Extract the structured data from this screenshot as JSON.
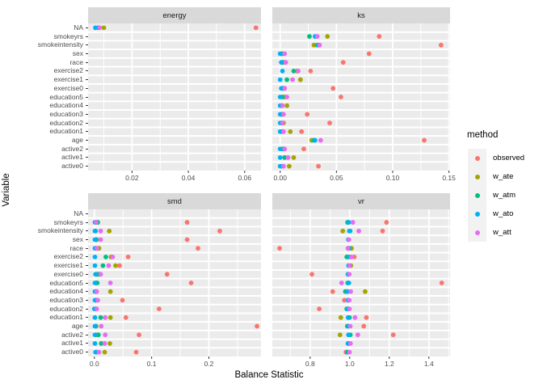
{
  "chart_data": {
    "type": "scatter",
    "title": "",
    "xlabel": "Balance Statistic",
    "ylabel": "Variable",
    "legend_position": "right",
    "grid": true,
    "categories": [
      "NA",
      "smokeyrs",
      "smokeintensity",
      "sex",
      "race",
      "exercise2",
      "exercise1",
      "exercise0",
      "education5",
      "education4",
      "education3",
      "education2",
      "education1",
      "age",
      "active2",
      "active1",
      "active0"
    ],
    "methods": [
      "observed",
      "w_ate",
      "w_atm",
      "w_ato",
      "w_att"
    ],
    "colors": {
      "observed": "#F8766D",
      "w_ate": "#A3A500",
      "w_atm": "#00BF7D",
      "w_ato": "#00B0F6",
      "w_att": "#E76BF3"
    },
    "theme": {
      "panel_bg": "#EBEBEB",
      "strip_bg": "#D9D9D9",
      "grid_color": "#FFFFFF",
      "tick_label_color": "#4D4D4D",
      "tick_mark_color": "#333333",
      "legend_key_bg": "#F2F2F2"
    },
    "legend": {
      "title": "method",
      "entries": [
        {
          "label": "observed",
          "method": "observed"
        },
        {
          "label": "w_ate",
          "method": "w_ate"
        },
        {
          "label": "w_atm",
          "method": "w_atm"
        },
        {
          "label": "w_ato",
          "method": "w_ato"
        },
        {
          "label": "w_att",
          "method": "w_att"
        }
      ]
    },
    "facets": [
      {
        "label": "energy",
        "xlim": [
          0.0044,
          0.0658
        ],
        "major_ticks": [
          0.02,
          0.04,
          0.06
        ],
        "tick_labels": [
          "0.02",
          "0.04",
          "0.06"
        ],
        "minor_ticks": [
          0.01,
          0.03,
          0.05
        ],
        "rows": [
          {
            "variable": "NA",
            "observed": 0.064,
            "w_ate": 0.01,
            "w_atm": 0.008,
            "w_ato": 0.007,
            "w_att": 0.0085
          }
        ]
      },
      {
        "label": "ks",
        "xlim": [
          -0.007,
          0.151
        ],
        "major_ticks": [
          0.0,
          0.05,
          0.1,
          0.15
        ],
        "tick_labels": [
          "0.00",
          "0.05",
          "0.10",
          "0.15"
        ],
        "minor_ticks": [
          0.025,
          0.075,
          0.125
        ],
        "rows": [
          {
            "variable": "smokeyrs",
            "observed": 0.088,
            "w_ate": 0.042,
            "w_atm": 0.026,
            "w_ato": 0.031,
            "w_att": 0.033
          },
          {
            "variable": "smokeintensity",
            "observed": 0.143,
            "w_ate": 0.03,
            "w_atm": 0.033,
            "w_ato": 0.034,
            "w_att": 0.035
          },
          {
            "variable": "sex",
            "observed": 0.079,
            "w_ate": 0.002,
            "w_atm": 0.001,
            "w_ato": 0.0,
            "w_att": 0.004
          },
          {
            "variable": "race",
            "observed": 0.056,
            "w_ate": 0.003,
            "w_atm": 0.002,
            "w_ato": 0.001,
            "w_att": 0.005
          },
          {
            "variable": "exercise2",
            "observed": 0.027,
            "w_ate": 0.015,
            "w_atm": 0.012,
            "w_ato": 0.002,
            "w_att": 0.016
          },
          {
            "variable": "exercise1",
            "observed": 0.018,
            "w_ate": 0.018,
            "w_atm": 0.006,
            "w_ato": 0.0,
            "w_att": 0.011
          },
          {
            "variable": "exercise0",
            "observed": 0.047,
            "w_ate": 0.003,
            "w_atm": 0.002,
            "w_ato": 0.001,
            "w_att": 0.004
          },
          {
            "variable": "education5",
            "observed": 0.054,
            "w_ate": 0.004,
            "w_atm": 0.002,
            "w_ato": 0.0,
            "w_att": 0.006
          },
          {
            "variable": "education4",
            "w_ate": 0.006,
            "w_atm": 0.001,
            "w_ato": 0.0,
            "w_att": 0.002
          },
          {
            "variable": "education3",
            "observed": 0.024,
            "w_ate": 0.002,
            "w_atm": 0.001,
            "w_ato": 0.0,
            "w_att": 0.003
          },
          {
            "variable": "education2",
            "observed": 0.044,
            "w_ate": 0.003,
            "w_atm": 0.001,
            "w_ato": 0.0,
            "w_att": 0.002
          },
          {
            "variable": "education1",
            "observed": 0.019,
            "w_ate": 0.009,
            "w_atm": 0.001,
            "w_ato": 0.0,
            "w_att": 0.003
          },
          {
            "variable": "age",
            "observed": 0.128,
            "w_ate": 0.028,
            "w_atm": 0.03,
            "w_ato": 0.031,
            "w_att": 0.036
          },
          {
            "variable": "active2",
            "observed": 0.021,
            "w_ate": 0.003,
            "w_atm": 0.002,
            "w_ato": 0.0,
            "w_att": 0.004
          },
          {
            "variable": "active1",
            "w_ate": 0.012,
            "w_atm": 0.004,
            "w_ato": 0.0,
            "w_att": 0.007
          },
          {
            "variable": "active0",
            "observed": 0.034,
            "w_ate": 0.008,
            "w_atm": 0.001,
            "w_ato": 0.0,
            "w_att": 0.003
          }
        ]
      },
      {
        "label": "smd",
        "xlim": [
          -0.011,
          0.291
        ],
        "major_ticks": [
          0.0,
          0.1,
          0.2
        ],
        "tick_labels": [
          "0.0",
          "0.1",
          "0.2"
        ],
        "minor_ticks": [
          0.05,
          0.15,
          0.25
        ],
        "rows": [
          {
            "variable": "smokeyrs",
            "observed": 0.162,
            "w_ate": 0.004,
            "w_atm": 0.006,
            "w_ato": 0.001,
            "w_att": 0.003
          },
          {
            "variable": "smokeintensity",
            "observed": 0.219,
            "w_ate": 0.026,
            "w_atm": 0.002,
            "w_ato": 0.001,
            "w_att": 0.011
          },
          {
            "variable": "sex",
            "observed": 0.162,
            "w_ate": 0.004,
            "w_atm": 0.003,
            "w_ato": 0.001,
            "w_att": 0.011
          },
          {
            "variable": "race",
            "observed": 0.181,
            "w_ate": 0.008,
            "w_atm": 0.002,
            "w_ato": 0.001,
            "w_att": 0.004
          },
          {
            "variable": "exercise2",
            "observed": 0.059,
            "w_ate": 0.029,
            "w_atm": 0.02,
            "w_ato": 0.001,
            "w_att": 0.032
          },
          {
            "variable": "exercise1",
            "observed": 0.044,
            "w_ate": 0.037,
            "w_atm": 0.015,
            "w_ato": 0.001,
            "w_att": 0.025
          },
          {
            "variable": "exercise0",
            "observed": 0.127,
            "w_ate": 0.004,
            "w_atm": 0.007,
            "w_ato": 0.002,
            "w_att": 0.011
          },
          {
            "variable": "education5",
            "observed": 0.169,
            "w_ate": 0.003,
            "w_atm": 0.005,
            "w_ato": 0.001,
            "w_att": 0.028
          },
          {
            "variable": "education4",
            "w_ate": 0.028,
            "w_atm": 0.002,
            "w_ato": 0.001,
            "w_att": 0.004
          },
          {
            "variable": "education3",
            "observed": 0.049,
            "w_ate": 0.003,
            "w_atm": 0.002,
            "w_ato": 0.001,
            "w_att": 0.006
          },
          {
            "variable": "education2",
            "observed": 0.113,
            "w_ate": 0.002,
            "w_atm": 0.001,
            "w_ato": 0.0,
            "w_att": 0.004
          },
          {
            "variable": "education1",
            "observed": 0.055,
            "w_ate": 0.028,
            "w_atm": 0.011,
            "w_ato": 0.001,
            "w_att": 0.019
          },
          {
            "variable": "age",
            "observed": 0.284,
            "w_ate": 0.003,
            "w_atm": 0.002,
            "w_ato": 0.001,
            "w_att": 0.012
          },
          {
            "variable": "active2",
            "observed": 0.078,
            "w_ate": 0.005,
            "w_atm": 0.007,
            "w_ato": 0.001,
            "w_att": 0.019
          },
          {
            "variable": "active1",
            "w_ate": 0.027,
            "w_atm": 0.012,
            "w_ato": 0.001,
            "w_att": 0.018
          },
          {
            "variable": "active0",
            "observed": 0.073,
            "w_ate": 0.018,
            "w_atm": 0.003,
            "w_ato": 0.002,
            "w_att": 0.008
          }
        ]
      },
      {
        "label": "vr",
        "xlim": [
          0.609,
          1.507
        ],
        "major_ticks": [
          0.8,
          1.0,
          1.2,
          1.4
        ],
        "tick_labels": [
          "0.8",
          "1.0",
          "1.2",
          "1.4"
        ],
        "minor_ticks": [
          0.7,
          0.9,
          1.1,
          1.3,
          1.5
        ],
        "rows": [
          {
            "variable": "smokeyrs",
            "observed": 1.186,
            "w_atm": 0.989,
            "w_ato": 0.996,
            "w_att": 1.016
          },
          {
            "variable": "smokeintensity",
            "observed": 1.166,
            "w_ate": 0.965,
            "w_atm": 1.002,
            "w_ato": 0.998,
            "w_att": 1.046
          },
          {
            "variable": "sex",
            "w_ato": 0.993,
            "w_att": 0.996
          },
          {
            "variable": "race",
            "observed": 0.646,
            "w_ate": 1.009,
            "w_atm": 0.997,
            "w_ato": 0.995,
            "w_att": 0.991
          },
          {
            "variable": "exercise2",
            "observed": 1.023,
            "w_ate": 0.993,
            "w_atm": 0.985,
            "w_ato": 1.0,
            "w_att": 1.008
          },
          {
            "variable": "exercise1",
            "w_ate": 1.006,
            "w_atm": 0.996,
            "w_ato": 0.994,
            "w_att": 0.999
          },
          {
            "variable": "exercise0",
            "observed": 0.809,
            "w_atm": 0.993,
            "w_ato": 0.991,
            "w_att": 0.998
          },
          {
            "variable": "education5",
            "observed": 1.465,
            "w_atm": 0.99,
            "w_ato": 0.996,
            "w_att": 0.959
          },
          {
            "variable": "education4",
            "observed": 0.914,
            "w_ate": 1.078,
            "w_atm": 0.978,
            "w_ato": 0.99,
            "w_att": 1.005
          },
          {
            "variable": "education3",
            "observed": 0.973,
            "w_atm": 0.995,
            "w_ato": 0.992,
            "w_att": 0.998
          },
          {
            "variable": "education2",
            "observed": 0.846,
            "w_atm": 0.985,
            "w_ato": 0.992,
            "w_att": 0.999
          },
          {
            "variable": "education1",
            "observed": 1.084,
            "w_ate": 0.955,
            "w_atm": 0.999,
            "w_ato": 0.992,
            "w_att": 1.027
          },
          {
            "variable": "age",
            "observed": 1.071,
            "w_atm": 0.988,
            "w_ato": 0.995,
            "w_att": 1.003
          },
          {
            "variable": "active2",
            "observed": 1.22,
            "w_ate": 0.951,
            "w_atm": 1.003,
            "w_ato": 0.994,
            "w_att": 1.041
          },
          {
            "variable": "active1",
            "w_atm": 0.997,
            "w_ato": 0.991,
            "w_att": 1.004
          },
          {
            "variable": "active0",
            "observed": 0.981,
            "w_atm": 0.988,
            "w_ato": 0.995,
            "w_att": 0.999
          }
        ]
      }
    ]
  }
}
